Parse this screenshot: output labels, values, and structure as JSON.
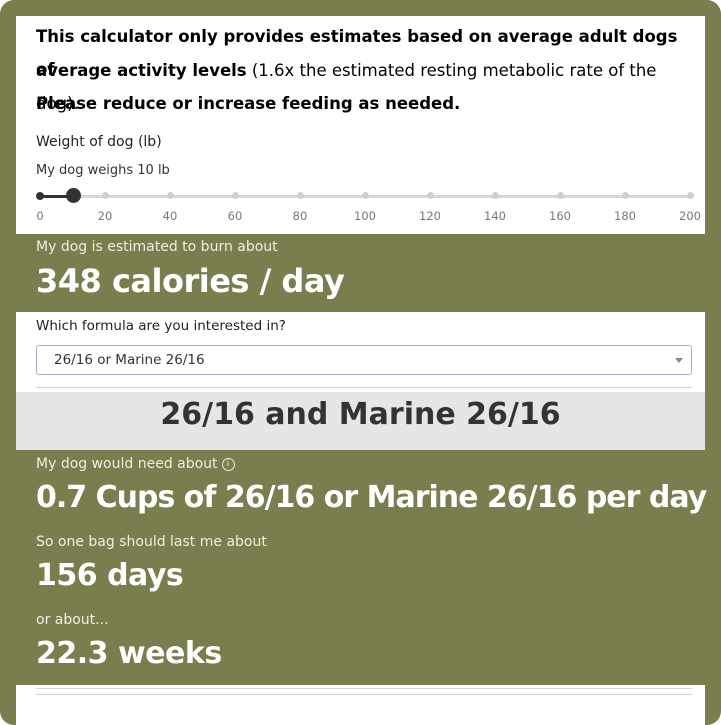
{
  "notice": {
    "line1_bold": "This calculator only provides estimates based on average adult dogs of",
    "line2_bold": "average activity levels",
    "line2_normal": " (1.6x the estimated resting metabolic rate of the dog).",
    "line3_bold": "Please reduce or increase feeding as needed."
  },
  "weight": {
    "label": "Weight of dog (lb)",
    "readout": "My dog weighs 10 lb",
    "value": 10,
    "min": 0,
    "max": 200,
    "ticks": [
      "0",
      "20",
      "40",
      "60",
      "80",
      "100",
      "120",
      "140",
      "160",
      "180",
      "200"
    ]
  },
  "calories": {
    "label": "My dog is estimated to burn about",
    "value": "348 calories / day"
  },
  "formula": {
    "label": "Which formula are you interested in?",
    "selected": "26/16 or Marine 26/16"
  },
  "section_title": "26/16 and Marine 26/16",
  "results": {
    "need_label": "My dog would need about",
    "info_icon": "info-icon",
    "need_value": "0.7 Cups of 26/16 or Marine 26/16 per day",
    "bag_label": "So one bag should last me about",
    "bag_value": "156 days",
    "or_label": "or about...",
    "weeks_value": "22.3 weeks"
  },
  "colors": {
    "panel": "#7a7d4e",
    "section_bg": "#e6e6e6",
    "slider_fill": "#333333"
  }
}
